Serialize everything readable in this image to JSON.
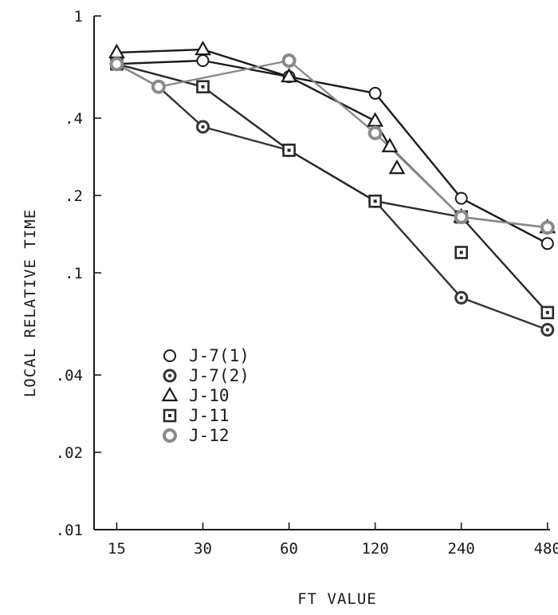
{
  "chart_data": {
    "type": "line",
    "title": "",
    "xlabel": "FT VALUE",
    "ylabel": "LOCAL RELATIVE TIME",
    "x_scale": "log",
    "y_scale": "log",
    "xlim": [
      12.5,
      490
    ],
    "ylim": [
      0.01,
      1
    ],
    "x_ticks": [
      15,
      30,
      60,
      120,
      240,
      480
    ],
    "x_tick_labels": [
      "15",
      "30",
      "60",
      "120",
      "240",
      "480"
    ],
    "y_ticks": [
      0.01,
      0.02,
      0.04,
      0.1,
      0.2,
      0.4,
      1
    ],
    "y_tick_labels": [
      ".01",
      ".02",
      ".04",
      ".1",
      ".2",
      ".4",
      "1"
    ],
    "grid": false,
    "legend_position": "lower-left",
    "series": [
      {
        "name": "J-7(1)",
        "marker": "circle-open",
        "color": "#1a1a1a",
        "points": [
          [
            15,
            0.65
          ],
          [
            30,
            0.67
          ],
          [
            60,
            0.58
          ],
          [
            120,
            0.5
          ],
          [
            240,
            0.195
          ],
          [
            480,
            0.13
          ]
        ]
      },
      {
        "name": "J-7(2)",
        "marker": "circle-dot",
        "color": "#333333",
        "points": [
          [
            15,
            0.65
          ],
          [
            21,
            0.53
          ],
          [
            30,
            0.37
          ],
          [
            60,
            0.3
          ],
          [
            120,
            0.19
          ],
          [
            240,
            0.08
          ],
          [
            480,
            0.06
          ]
        ]
      },
      {
        "name": "J-10",
        "marker": "triangle",
        "color": "#1a1a1a",
        "points": [
          [
            15,
            0.72
          ],
          [
            30,
            0.74
          ],
          [
            60,
            0.58
          ],
          [
            120,
            0.39
          ],
          [
            135,
            0.31
          ],
          [
            240,
            0.165
          ],
          [
            480,
            0.15
          ]
        ]
      },
      {
        "name": "J-11",
        "marker": "square",
        "color": "#2a2a2a",
        "points": [
          [
            15,
            0.65
          ],
          [
            30,
            0.53
          ],
          [
            60,
            0.3
          ],
          [
            120,
            0.19
          ],
          [
            240,
            0.165
          ],
          [
            480,
            0.07
          ]
        ]
      },
      {
        "name": "J-12",
        "marker": "circle-bold",
        "color": "#8a8a8a",
        "points": [
          [
            15,
            0.65
          ],
          [
            21,
            0.53
          ],
          [
            60,
            0.67
          ],
          [
            120,
            0.35
          ],
          [
            240,
            0.165
          ],
          [
            480,
            0.15
          ]
        ]
      }
    ],
    "isolated_points": [
      {
        "series": "J-10",
        "marker": "triangle",
        "x": 143,
        "y": 0.255
      },
      {
        "series": "J-11",
        "marker": "square",
        "x": 240,
        "y": 0.12
      }
    ]
  }
}
